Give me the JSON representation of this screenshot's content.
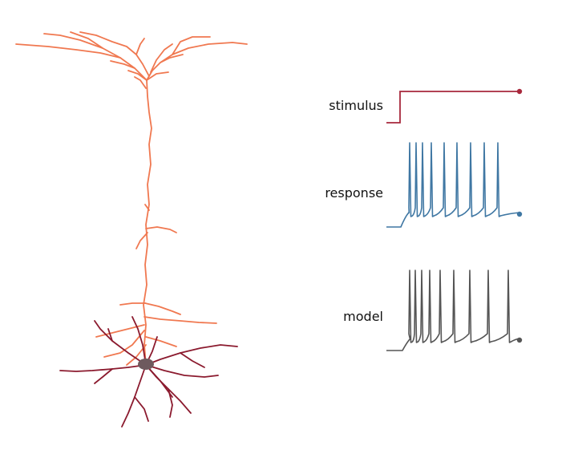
{
  "figure": {
    "labels": {
      "stimulus": "stimulus",
      "response": "response",
      "model": "model"
    },
    "colors": {
      "apical_dendrite": "#f07850",
      "basal_dendrite": "#8b1a2e",
      "soma": "#6e5a5e",
      "stimulus_trace": "#a8283c",
      "response_trace": "#3f77a3",
      "model_trace": "#555555"
    },
    "response_spike_count": 9,
    "model_spike_count": 9
  }
}
